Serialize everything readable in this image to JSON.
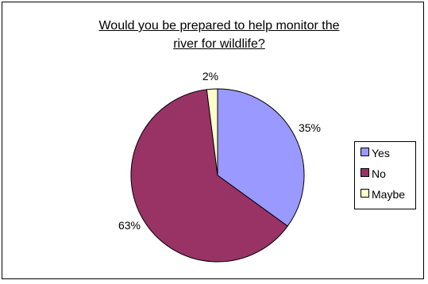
{
  "chart_data": {
    "type": "pie",
    "title_lines": [
      "Would you be prepared to help monitor the",
      "river for wildlife?"
    ],
    "categories": [
      "Yes",
      "No",
      "Maybe"
    ],
    "values": [
      35,
      63,
      2
    ],
    "value_labels": [
      "35%",
      "63%",
      "2%"
    ],
    "colors": [
      "#9999ff",
      "#993366",
      "#ffffcc"
    ],
    "legend_position": "right",
    "start_angle": "12 o'clock, clockwise"
  }
}
